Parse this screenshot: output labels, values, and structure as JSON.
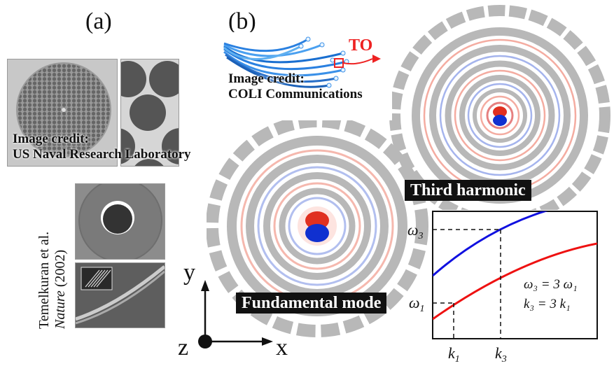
{
  "panel_a_label": "(a)",
  "panel_b_label": "(b)",
  "credit1": {
    "line1": "Image credit:",
    "line2": "US Naval Research Laboratory"
  },
  "credit2": {
    "line1": "Image credit:",
    "line2": "COLI Communications"
  },
  "citation": {
    "line1": "Temelkuran et al.",
    "line2_italic": "Nature",
    "line2_rest": " (2002)"
  },
  "to_label": "TO",
  "banner_third": "Third harmonic",
  "banner_fundamental": "Fundamental mode",
  "axes3d": {
    "y": "y",
    "z": "z",
    "x": "x"
  },
  "dispersion": {
    "omega3": "ω",
    "omega3_sub": "3",
    "omega1": "ω",
    "omega1_sub": "1",
    "k1": "k",
    "k1_sub": "1",
    "k3": "k",
    "k3_sub": "3",
    "eq1": "ω₃ = 3 ω₁",
    "eq2": "k₃ = 3 k₁",
    "curve_colors": {
      "upper": "#1010e0",
      "lower": "#ee1111"
    }
  },
  "colors": {
    "field_red": "#e03020",
    "field_blue": "#1030d0",
    "ring_gray": "#b8b8b8"
  }
}
